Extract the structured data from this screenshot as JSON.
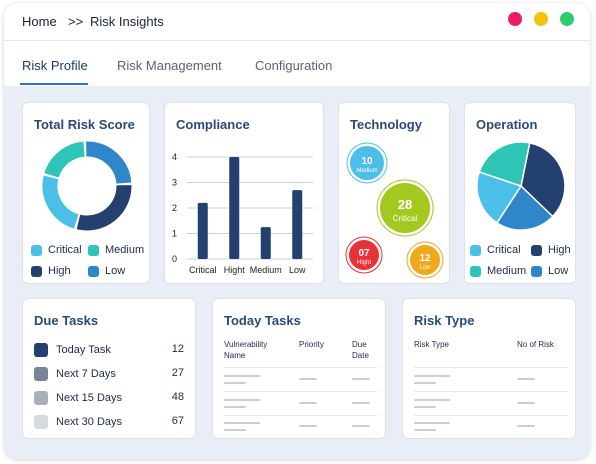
{
  "breadcrumb": {
    "home": "Home",
    "separator": ">>",
    "current": "Risk Insights"
  },
  "window_controls": [
    {
      "name": "close-dot",
      "color": "#e91e63"
    },
    {
      "name": "minimize-dot",
      "color": "#f5c00f"
    },
    {
      "name": "maximize-dot",
      "color": "#2ecc71"
    }
  ],
  "tabs": [
    {
      "label": "Risk Profile",
      "active": true
    },
    {
      "label": "Risk Management",
      "active": false
    },
    {
      "label": "Configuration",
      "active": false
    }
  ],
  "colors": {
    "critical": "#4bbfe8",
    "medium": "#2ec4b6",
    "high": "#24406e",
    "low": "#2f86c8",
    "bar": "#24406e"
  },
  "total_risk": {
    "title": "Total Risk Score",
    "legend": [
      "Critical",
      "Medium",
      "High",
      "Low"
    ]
  },
  "operation": {
    "title": "Operation",
    "legend": [
      "Critical",
      "High",
      "Medium",
      "Low"
    ]
  },
  "technology": {
    "title": "Technology",
    "bubbles": [
      {
        "value": "10",
        "label": "Medium",
        "color": "#4bbfe8"
      },
      {
        "value": "28",
        "label": "Critical",
        "color": "#a3c81e"
      },
      {
        "value": "07",
        "label": "Hight",
        "color": "#e8323a"
      },
      {
        "value": "12",
        "label": "Low",
        "color": "#f0a81c"
      }
    ]
  },
  "chart_data": [
    {
      "type": "pie",
      "title": "Total Risk Score",
      "donut": true,
      "labels": [
        "Critical",
        "Medium",
        "High",
        "Low"
      ],
      "values": [
        25,
        20,
        30,
        25
      ]
    },
    {
      "type": "bar",
      "title": "Compliance",
      "categories": [
        "Critical",
        "Hight",
        "Medium",
        "Low"
      ],
      "values": [
        2.2,
        4.0,
        1.25,
        2.7
      ],
      "ylim": [
        0,
        4
      ],
      "yticks": [
        "0",
        "1",
        "2",
        "3",
        "4"
      ],
      "grid": true
    },
    {
      "type": "pie",
      "title": "Operation",
      "labels": [
        "High",
        "Low",
        "Critical",
        "Medium"
      ],
      "values": [
        34,
        22,
        21,
        23
      ]
    }
  ],
  "due_tasks": {
    "title": "Due Tasks",
    "rows": [
      {
        "label": "Today Task",
        "value": "12",
        "color": "#24406e"
      },
      {
        "label": "Next 7 Days",
        "value": "27",
        "color": "#7a8496"
      },
      {
        "label": "Next 15 Days",
        "value": "48",
        "color": "#a9b0bb"
      },
      {
        "label": "Next 30 Days",
        "value": "67",
        "color": "#d6d9de"
      }
    ]
  },
  "today_tasks": {
    "title": "Today Tasks",
    "columns": [
      "Vulnerability Name",
      "Priority",
      "Due Date"
    ]
  },
  "risk_type": {
    "title": "Risk Type",
    "columns": [
      "Risk Type",
      "No of Risk"
    ]
  }
}
